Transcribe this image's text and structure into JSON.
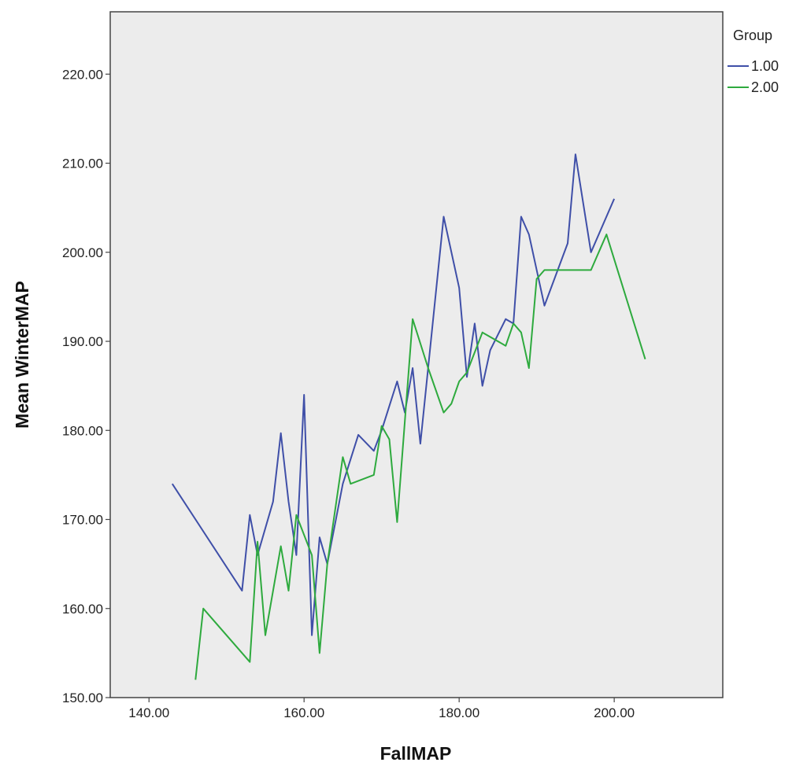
{
  "chart_data": {
    "type": "line",
    "xlabel": "FallMAP",
    "ylabel": "Mean WinterMAP",
    "xlim": [
      135,
      214
    ],
    "ylim": [
      150,
      227
    ],
    "xticks": [
      140,
      160,
      180,
      200
    ],
    "xtick_labels": [
      "140.00",
      "160.00",
      "180.00",
      "200.00"
    ],
    "yticks": [
      150,
      160,
      170,
      180,
      190,
      200,
      210,
      220
    ],
    "ytick_labels": [
      "150.00",
      "160.00",
      "170.00",
      "180.00",
      "190.00",
      "200.00",
      "210.00",
      "220.00"
    ],
    "grid": false,
    "plot_background": "#ececec",
    "legend": {
      "title": "Group",
      "position": "right-top"
    },
    "series": [
      {
        "name": "1.00",
        "color": "#3f4fa8",
        "points": [
          [
            143,
            174
          ],
          [
            152,
            162
          ],
          [
            153,
            170.5
          ],
          [
            154,
            166
          ],
          [
            156,
            172
          ],
          [
            157,
            179.7
          ],
          [
            158,
            172
          ],
          [
            159,
            166
          ],
          [
            160,
            184
          ],
          [
            161,
            157
          ],
          [
            162,
            168
          ],
          [
            163,
            165
          ],
          [
            165,
            174
          ],
          [
            167,
            179.5
          ],
          [
            169,
            177.7
          ],
          [
            170,
            180
          ],
          [
            172,
            185.5
          ],
          [
            173,
            182
          ],
          [
            174,
            187
          ],
          [
            175,
            178.5
          ],
          [
            178,
            204
          ],
          [
            180,
            196
          ],
          [
            181,
            186
          ],
          [
            182,
            192
          ],
          [
            183,
            185
          ],
          [
            184,
            189
          ],
          [
            186,
            192.5
          ],
          [
            187,
            192
          ],
          [
            188,
            204
          ],
          [
            189,
            202
          ],
          [
            191,
            194
          ],
          [
            194,
            201
          ],
          [
            195,
            211
          ],
          [
            197,
            200
          ],
          [
            200,
            206
          ]
        ]
      },
      {
        "name": "2.00",
        "color": "#2eaa3e",
        "points": [
          [
            146,
            152
          ],
          [
            147,
            160
          ],
          [
            153,
            154
          ],
          [
            154,
            167.5
          ],
          [
            155,
            157
          ],
          [
            157,
            167
          ],
          [
            158,
            162
          ],
          [
            159,
            170.5
          ],
          [
            161,
            166
          ],
          [
            162,
            155
          ],
          [
            163,
            165
          ],
          [
            165,
            177
          ],
          [
            166,
            174
          ],
          [
            169,
            175
          ],
          [
            170,
            180.5
          ],
          [
            171,
            179
          ],
          [
            172,
            169.7
          ],
          [
            174,
            192.5
          ],
          [
            176,
            187
          ],
          [
            178,
            182
          ],
          [
            179,
            183
          ],
          [
            180,
            185.5
          ],
          [
            181,
            186.5
          ],
          [
            183,
            191
          ],
          [
            186,
            189.5
          ],
          [
            187,
            192
          ],
          [
            188,
            191
          ],
          [
            189,
            187
          ],
          [
            190,
            197
          ],
          [
            191,
            198
          ],
          [
            197,
            198
          ],
          [
            199,
            202
          ],
          [
            204,
            188
          ]
        ]
      }
    ]
  }
}
